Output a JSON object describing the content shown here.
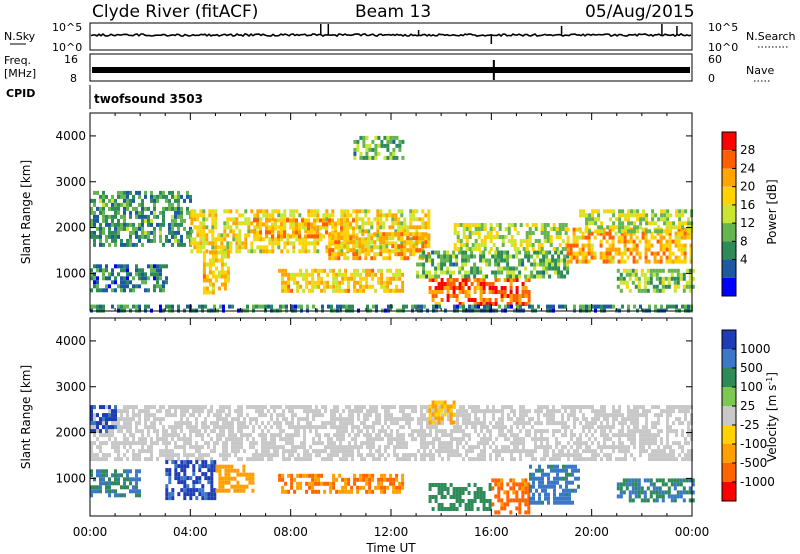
{
  "header": {
    "site": "Clyde River (fitACF)",
    "beam": "Beam 13",
    "date": "05/Aug/2015"
  },
  "top_panels": {
    "nsky_label": "N.Sky",
    "nsky_ticks": [
      "10^5",
      "10^0"
    ],
    "nsearch_label": "N.Search",
    "nsearch_ticks": [
      "10^5",
      "10^0"
    ],
    "freq_label_1": "Freq.",
    "freq_label_2": "[MHz]",
    "freq_ticks": [
      "16",
      "8"
    ],
    "nave_label": "Nave",
    "nave_ticks": [
      "60",
      "0"
    ],
    "cpid_label": "CPID",
    "cpid_value": "twofsound 3503"
  },
  "chart_data": [
    {
      "type": "heatmap",
      "title": "",
      "ylabel": "Slant Range [km]",
      "ylim": [
        180,
        4500
      ],
      "xlim": [
        "00:00",
        "24:00"
      ],
      "yticks": [
        "1000",
        "2000",
        "3000",
        "4000"
      ],
      "colorbar_label": "Power [dB]",
      "colorbar_ticks": [
        "28",
        "24",
        "20",
        "16",
        "12",
        "8",
        "4"
      ],
      "colorbar_colors": [
        "#ff0000",
        "#ff5f00",
        "#ffa500",
        "#ffd200",
        "#c8e632",
        "#64b450",
        "#2e8b57",
        "#1e5aa0",
        "#0000ff"
      ],
      "regions": [
        {
          "t0": 0.0,
          "t1": 4.0,
          "r0": 1600,
          "r1": 2800,
          "value": 10
        },
        {
          "t0": 0.0,
          "t1": 3.0,
          "r0": 600,
          "r1": 1200,
          "value": 8
        },
        {
          "t0": 4.0,
          "t1": 13.5,
          "r0": 1500,
          "r1": 2400,
          "value": 18
        },
        {
          "t0": 6.5,
          "t1": 10.5,
          "r0": 1800,
          "r1": 2200,
          "value": 22
        },
        {
          "t0": 4.5,
          "t1": 5.5,
          "r0": 600,
          "r1": 1500,
          "value": 20
        },
        {
          "t0": 9.5,
          "t1": 13.5,
          "r0": 1300,
          "r1": 1900,
          "value": 22
        },
        {
          "t0": 7.5,
          "t1": 12.5,
          "r0": 600,
          "r1": 1100,
          "value": 20
        },
        {
          "t0": 13.5,
          "t1": 17.5,
          "r0": 300,
          "r1": 900,
          "value": 26
        },
        {
          "t0": 13.0,
          "t1": 19.0,
          "r0": 900,
          "r1": 1500,
          "value": 12
        },
        {
          "t0": 14.5,
          "t1": 19.0,
          "r0": 1500,
          "r1": 2100,
          "value": 16
        },
        {
          "t0": 19.0,
          "t1": 24.0,
          "r0": 1300,
          "r1": 2000,
          "value": 22
        },
        {
          "t0": 19.5,
          "t1": 24.0,
          "r0": 1900,
          "r1": 2400,
          "value": 16
        },
        {
          "t0": 21.0,
          "t1": 24.0,
          "r0": 600,
          "r1": 1100,
          "value": 14
        },
        {
          "t0": 10.5,
          "t1": 12.5,
          "r0": 3500,
          "r1": 4000,
          "value": 12
        },
        {
          "t0": 0.0,
          "t1": 24.0,
          "r0": 180,
          "r1": 320,
          "value": 8
        }
      ]
    },
    {
      "type": "heatmap",
      "title": "",
      "xlabel": "Time UT",
      "ylabel": "Slant Range [km]",
      "ylim": [
        180,
        4500
      ],
      "xlim": [
        "00:00",
        "24:00"
      ],
      "xticks": [
        "00:00",
        "04:00",
        "08:00",
        "12:00",
        "16:00",
        "20:00",
        "00:00"
      ],
      "yticks": [
        "1000",
        "2000",
        "3000",
        "4000"
      ],
      "colorbar_label": "Velocity [m s^-1]",
      "colorbar_ticks": [
        "1000",
        "500",
        "100",
        "25",
        "-25",
        "-100",
        "-500",
        "-1000"
      ],
      "colorbar_colors": [
        "#1e3cb4",
        "#3c78c8",
        "#2e8b57",
        "#7cc850",
        "#c8c8c8",
        "#ffd200",
        "#ffa000",
        "#ff6400",
        "#ff0000"
      ],
      "regions": [
        {
          "t0": 0.0,
          "t1": 24.0,
          "r0": 1400,
          "r1": 2600,
          "value": 0
        },
        {
          "t0": 0.0,
          "t1": 1.0,
          "r0": 2000,
          "r1": 2600,
          "value": 900
        },
        {
          "t0": 0.0,
          "t1": 2.0,
          "r0": 600,
          "r1": 1200,
          "value": 300
        },
        {
          "t0": 3.0,
          "t1": 5.0,
          "r0": 600,
          "r1": 1400,
          "value": 900
        },
        {
          "t0": 5.0,
          "t1": 6.5,
          "r0": 700,
          "r1": 1300,
          "value": -200
        },
        {
          "t0": 7.5,
          "t1": 12.5,
          "r0": 700,
          "r1": 1100,
          "value": -300
        },
        {
          "t0": 13.5,
          "t1": 16.0,
          "r0": 300,
          "r1": 900,
          "value": 150
        },
        {
          "t0": 16.0,
          "t1": 17.5,
          "r0": 300,
          "r1": 1000,
          "value": -400
        },
        {
          "t0": 17.5,
          "t1": 19.5,
          "r0": 500,
          "r1": 1300,
          "value": 400
        },
        {
          "t0": 21.0,
          "t1": 24.0,
          "r0": 500,
          "r1": 1000,
          "value": 300
        },
        {
          "t0": 13.5,
          "t1": 14.5,
          "r0": 2200,
          "r1": 2700,
          "value": -60
        }
      ]
    }
  ]
}
